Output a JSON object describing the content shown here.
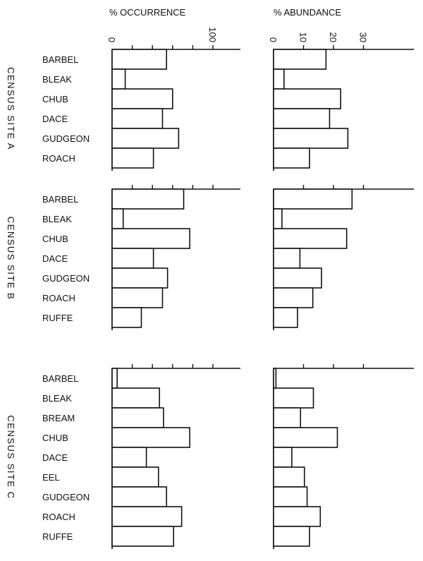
{
  "chart_data": [
    {
      "type": "bar",
      "orientation": "horizontal",
      "panels": [
        "occurrence",
        "abundance"
      ],
      "axes": {
        "occurrence": {
          "label": "% OCCURRENCE",
          "range": [
            0,
            127
          ],
          "ticks": [
            0,
            20,
            40,
            60,
            80,
            100
          ],
          "tick_labels": {
            "0": "0",
            "100": "100"
          }
        },
        "abundance": {
          "label": "% ABUNDANCE",
          "range": [
            0,
            35
          ],
          "ticks": [
            0,
            10,
            20,
            30
          ],
          "tick_labels": {
            "0": "0",
            "10": "10",
            "20": "20",
            "30": "30"
          }
        }
      },
      "grid": false,
      "colors": {
        "bar_fill": "#ffffff",
        "bar_stroke": "#111111"
      },
      "groups": [
        {
          "label": "CENSUS SITE A",
          "categories": [
            "BARBEL",
            "BLEAK",
            "CHUB",
            "DACE",
            "GUDGEON",
            "ROACH"
          ],
          "occurrence": [
            54,
            13,
            60,
            50,
            66,
            41
          ],
          "abundance": [
            17.5,
            3.5,
            22.4,
            18.7,
            24.8,
            12
          ]
        },
        {
          "label": "CENSUS SITE B",
          "categories": [
            "BARBEL",
            "BLEAK",
            "CHUB",
            "DACE",
            "GUDGEON",
            "ROACH",
            "RUFFE"
          ],
          "occurrence": [
            71,
            11,
            77,
            41,
            55,
            50,
            29
          ],
          "abundance": [
            26.2,
            2.8,
            24.4,
            8.8,
            16,
            13.1,
            8
          ]
        },
        {
          "label": "CENSUS SITE C",
          "categories": [
            "BARBEL",
            "BLEAK",
            "BREAM",
            "CHUB",
            "DACE",
            "EEL",
            "GUDGEON",
            "ROACH",
            "RUFFE"
          ],
          "occurrence": [
            5,
            47,
            51,
            77,
            34,
            46,
            54,
            69,
            61
          ],
          "abundance": [
            0.8,
            13.3,
            9,
            21.3,
            6.1,
            10.3,
            11.2,
            15.6,
            12
          ]
        }
      ]
    }
  ]
}
